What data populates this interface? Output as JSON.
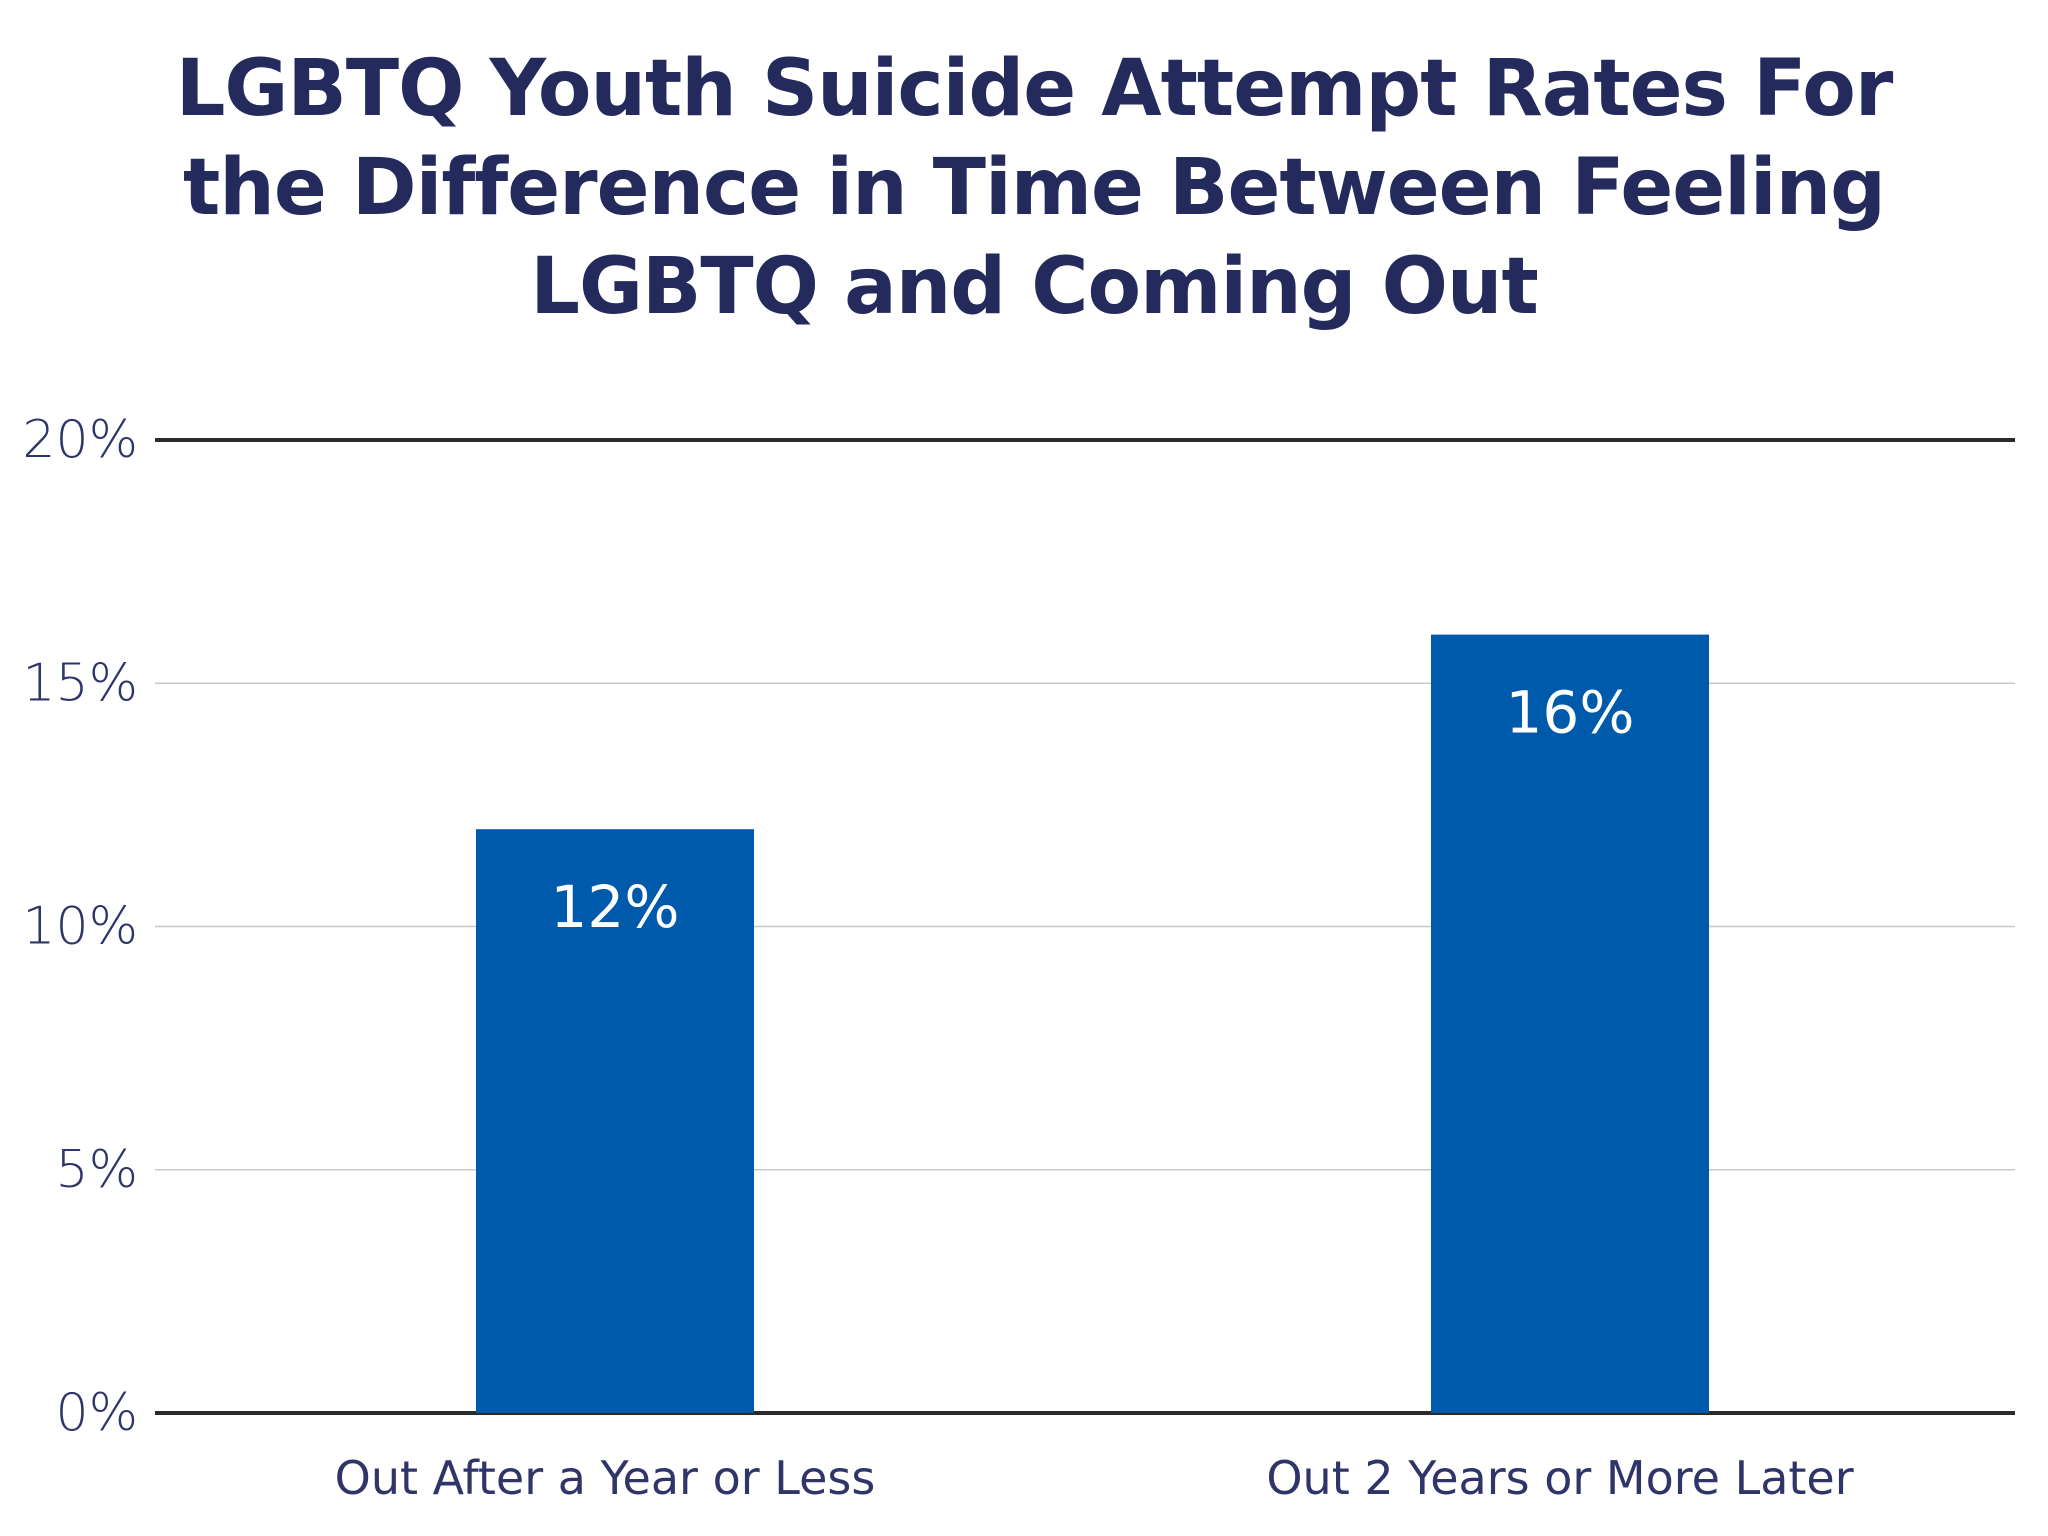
{
  "chart_data": {
    "type": "bar",
    "title": "LGBTQ Youth Suicide Attempt Rates For the Difference in Time Between Feeling LGBTQ and Coming Out",
    "categories": [
      "Out After a Year or Less",
      "Out 2 Years or More Later"
    ],
    "values": [
      12,
      16
    ],
    "data_labels": [
      "12%",
      "16%"
    ],
    "ylim": [
      0,
      20
    ],
    "yticks": [
      0,
      5,
      10,
      15,
      20
    ],
    "ytick_labels": [
      "0%",
      "5%",
      "10%",
      "15%",
      "20%"
    ],
    "xlabel": "",
    "ylabel": "",
    "grid": true,
    "legend": "none",
    "colors": {
      "bar": "#005aab",
      "title": "#242a5c",
      "axis_text": "#2f3569",
      "gridline": "#c8c8c8",
      "axis_line": "#2b2b2b"
    }
  }
}
